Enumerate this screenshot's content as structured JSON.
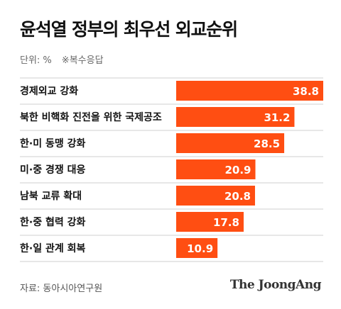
{
  "chart_data": {
    "type": "bar",
    "orientation": "horizontal",
    "title": "윤석열 정부의 최우선 외교순위",
    "unit_note": "단위: %",
    "multi_note": "※복수응답",
    "categories": [
      "경제외교 강화",
      "북한 비핵화 진전을 위한 국제공조",
      "한·미 동맹 강화",
      "미·중 경쟁 대응",
      "남북 교류 확대",
      "한·중 협력 강화",
      "한·일 관계 회복"
    ],
    "values": [
      38.8,
      31.2,
      28.5,
      20.9,
      20.8,
      17.8,
      10.9
    ],
    "value_labels": [
      "38.8",
      "31.2",
      "28.5",
      "20.9",
      "20.8",
      "17.8",
      "10.9"
    ],
    "xlim": [
      0,
      38.8
    ],
    "grid": false,
    "legend": "none",
    "bar_color": "#ff4e12"
  },
  "footer": {
    "source": "자료: 동아시아연구원",
    "brand": "The JoongAng"
  }
}
